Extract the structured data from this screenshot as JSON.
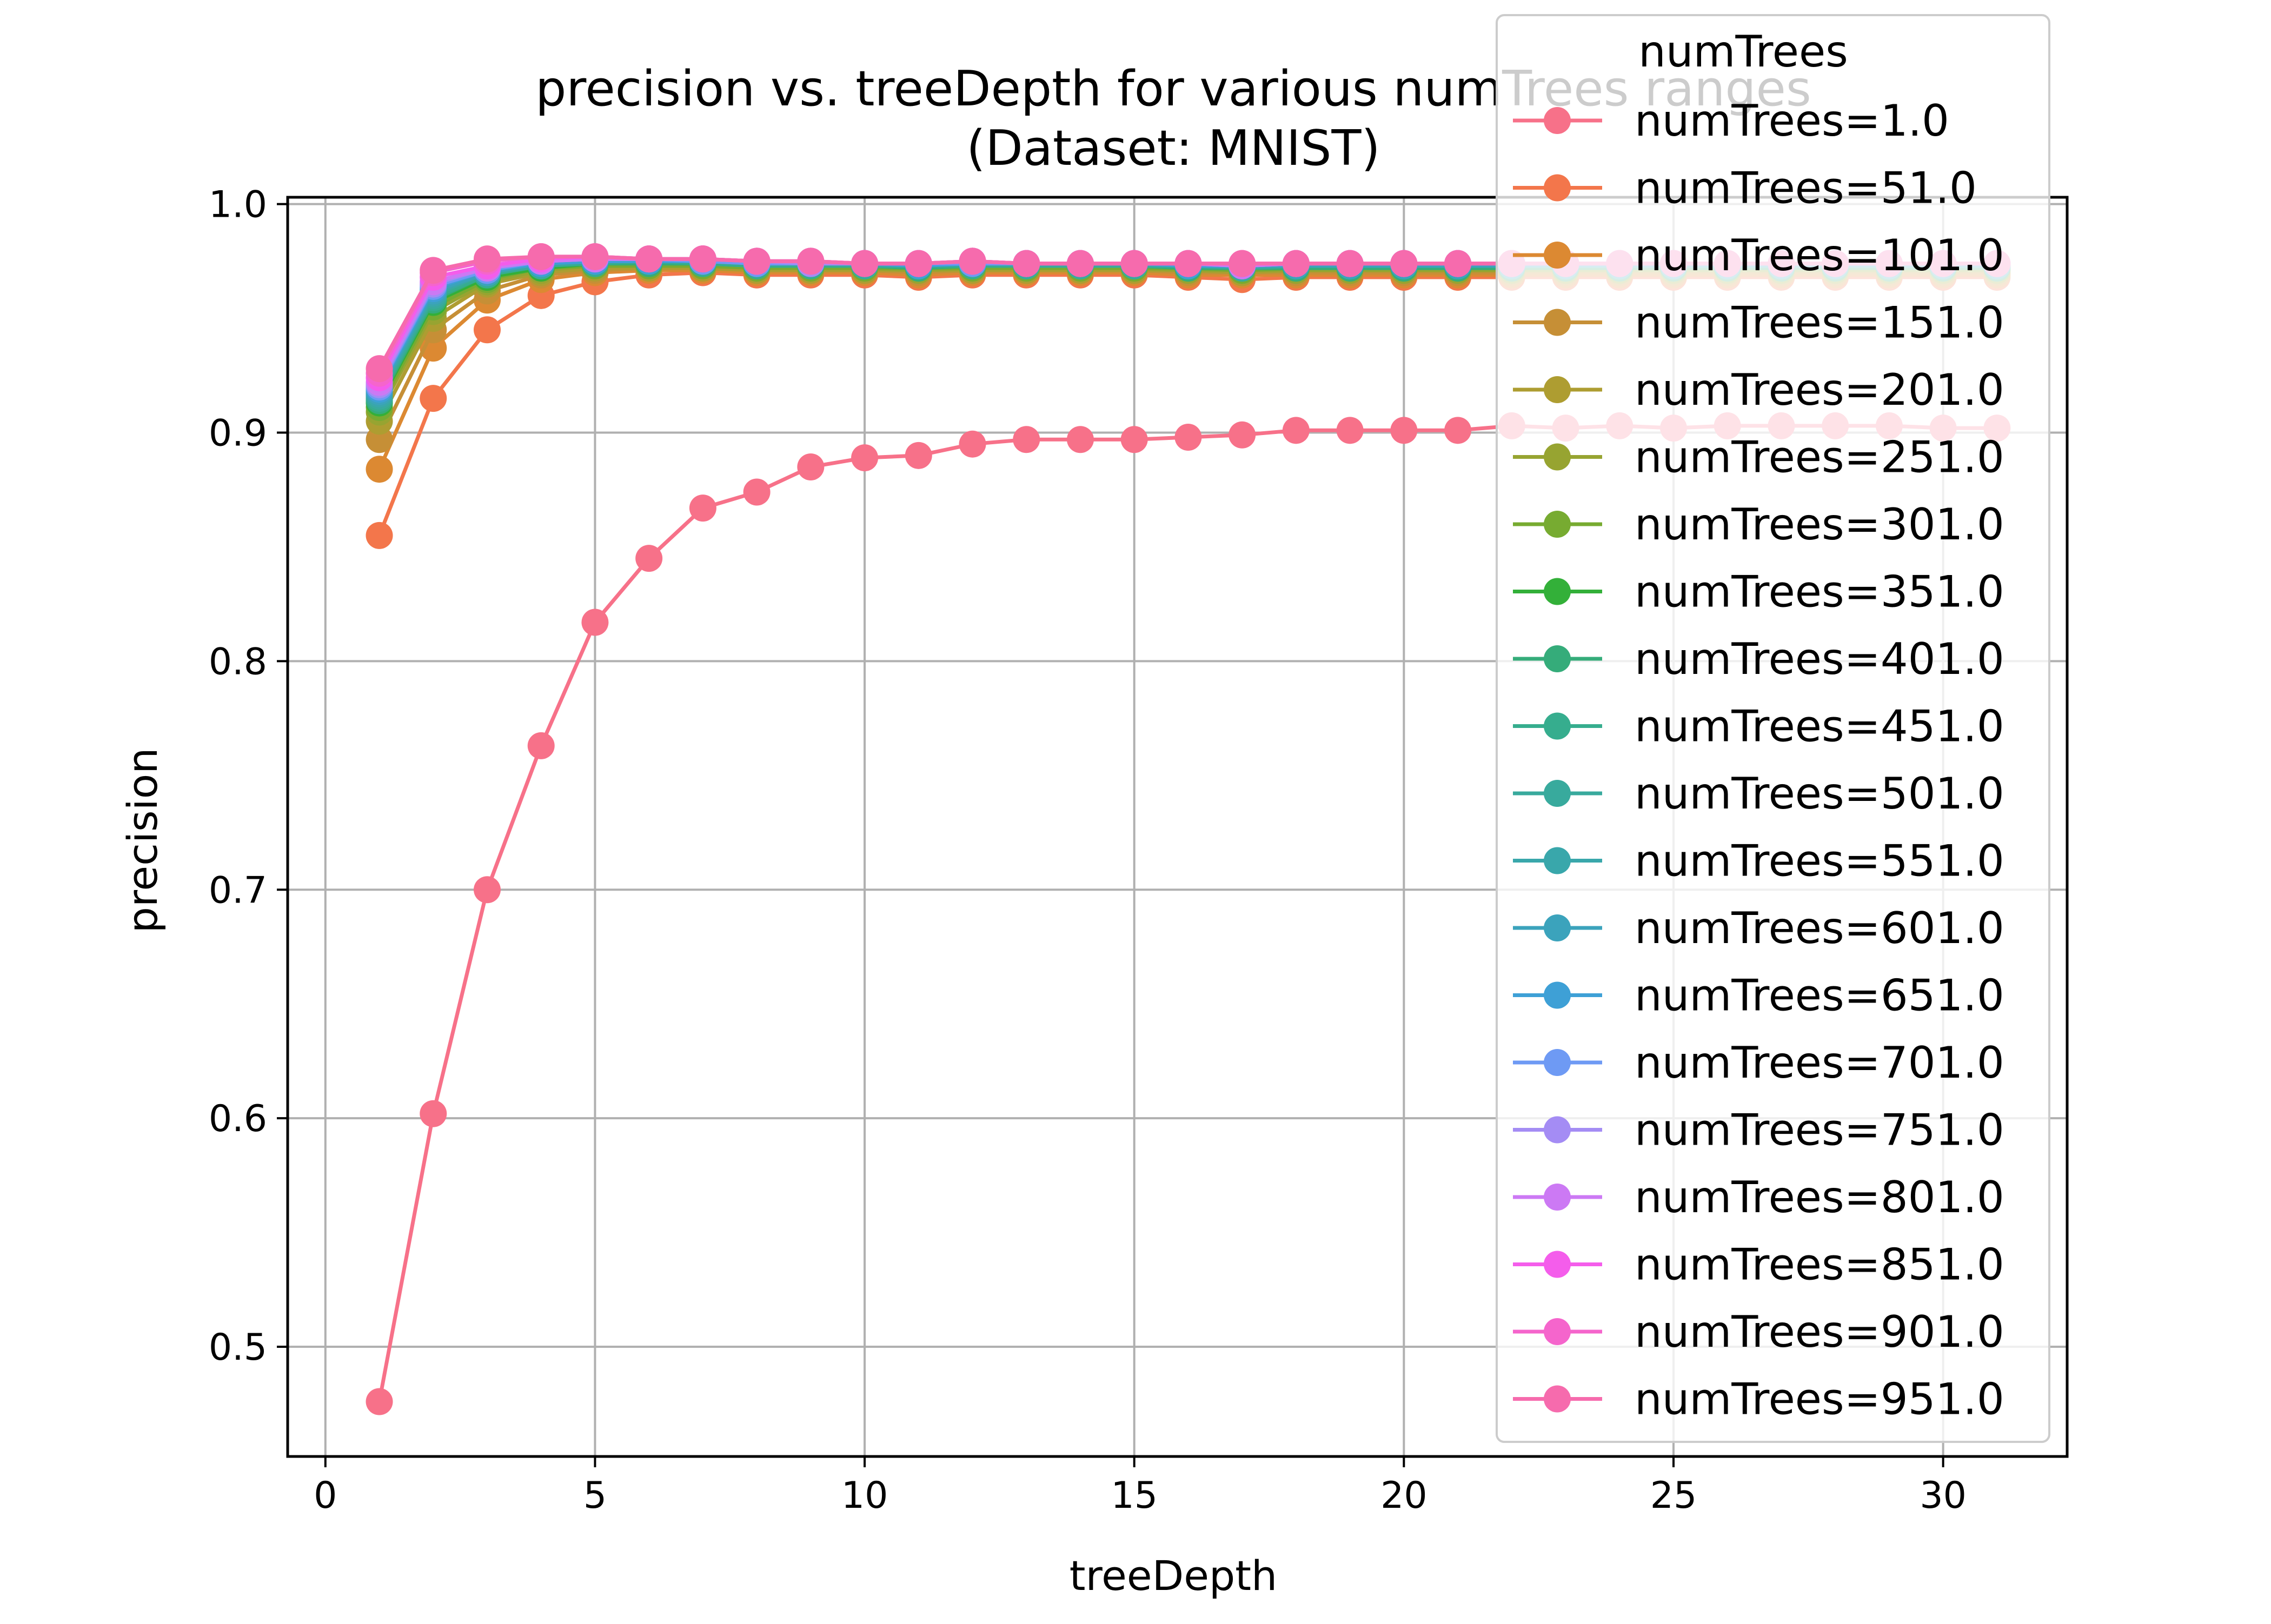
{
  "chart_data": {
    "type": "line",
    "title": "precision vs. treeDepth for various numTrees ranges",
    "subtitle": "(Dataset: MNIST)",
    "xlabel": "treeDepth",
    "ylabel": "precision",
    "xlim": [
      -0.7,
      32.3
    ],
    "ylim": [
      0.452,
      1.003
    ],
    "xticks": [
      0,
      5,
      10,
      15,
      20,
      25,
      30
    ],
    "yticks": [
      0.5,
      0.6,
      0.7,
      0.8,
      0.9,
      1.0
    ],
    "grid": true,
    "legend": {
      "title": "numTrees",
      "placement": "top-right"
    },
    "x": [
      1,
      2,
      3,
      4,
      5,
      6,
      7,
      8,
      9,
      10,
      11,
      12,
      13,
      14,
      15,
      16,
      17,
      18,
      19,
      20,
      21,
      22,
      23,
      24,
      25,
      26,
      27,
      28,
      29,
      30,
      31
    ],
    "series": [
      {
        "name": "numTrees=1.0",
        "color": "#f77189",
        "values": [
          0.476,
          0.602,
          0.7,
          0.763,
          0.817,
          0.845,
          0.867,
          0.874,
          0.885,
          0.889,
          0.89,
          0.895,
          0.897,
          0.897,
          0.897,
          0.898,
          0.899,
          0.901,
          0.901,
          0.901,
          0.901,
          0.903,
          0.902,
          0.903,
          0.902,
          0.903,
          0.903,
          0.903,
          0.903,
          0.902,
          0.902
        ]
      },
      {
        "name": "numTrees=51.0",
        "color": "#f3764b",
        "values": [
          0.855,
          0.915,
          0.945,
          0.96,
          0.966,
          0.969,
          0.97,
          0.969,
          0.969,
          0.969,
          0.968,
          0.969,
          0.969,
          0.969,
          0.969,
          0.968,
          0.967,
          0.968,
          0.968,
          0.968,
          0.968,
          0.968,
          0.968,
          0.968,
          0.968,
          0.968,
          0.968,
          0.968,
          0.968,
          0.968,
          0.968
        ]
      },
      {
        "name": "numTrees=101.0",
        "color": "#dc8932",
        "values": [
          0.884,
          0.937,
          0.958,
          0.967,
          0.97,
          0.971,
          0.971,
          0.97,
          0.97,
          0.97,
          0.969,
          0.97,
          0.97,
          0.97,
          0.97,
          0.969,
          0.969,
          0.969,
          0.969,
          0.969,
          0.969,
          0.969,
          0.969,
          0.969,
          0.969,
          0.969,
          0.969,
          0.969,
          0.969,
          0.969,
          0.969
        ]
      },
      {
        "name": "numTrees=151.0",
        "color": "#c68f36",
        "values": [
          0.897,
          0.945,
          0.962,
          0.969,
          0.971,
          0.972,
          0.972,
          0.971,
          0.971,
          0.971,
          0.97,
          0.971,
          0.971,
          0.971,
          0.971,
          0.97,
          0.97,
          0.97,
          0.97,
          0.97,
          0.97,
          0.97,
          0.97,
          0.97,
          0.97,
          0.97,
          0.97,
          0.97,
          0.97,
          0.97,
          0.97
        ]
      },
      {
        "name": "numTrees=201.0",
        "color": "#ae9d31",
        "values": [
          0.905,
          0.95,
          0.965,
          0.97,
          0.972,
          0.972,
          0.972,
          0.971,
          0.971,
          0.971,
          0.971,
          0.971,
          0.971,
          0.971,
          0.971,
          0.971,
          0.97,
          0.971,
          0.971,
          0.971,
          0.971,
          0.971,
          0.971,
          0.971,
          0.971,
          0.971,
          0.971,
          0.971,
          0.971,
          0.971,
          0.971
        ]
      },
      {
        "name": "numTrees=251.0",
        "color": "#97a431",
        "values": [
          0.909,
          0.953,
          0.966,
          0.971,
          0.973,
          0.973,
          0.973,
          0.972,
          0.972,
          0.972,
          0.971,
          0.972,
          0.972,
          0.972,
          0.972,
          0.971,
          0.971,
          0.971,
          0.971,
          0.971,
          0.971,
          0.971,
          0.971,
          0.971,
          0.971,
          0.971,
          0.971,
          0.971,
          0.971,
          0.971,
          0.971
        ]
      },
      {
        "name": "numTrees=301.0",
        "color": "#77ab31",
        "values": [
          0.911,
          0.955,
          0.967,
          0.972,
          0.973,
          0.973,
          0.973,
          0.972,
          0.972,
          0.972,
          0.972,
          0.972,
          0.972,
          0.972,
          0.972,
          0.972,
          0.971,
          0.972,
          0.972,
          0.972,
          0.972,
          0.972,
          0.972,
          0.972,
          0.972,
          0.972,
          0.972,
          0.972,
          0.972,
          0.972,
          0.972
        ]
      },
      {
        "name": "numTrees=351.0",
        "color": "#33b039",
        "values": [
          0.913,
          0.957,
          0.968,
          0.972,
          0.974,
          0.974,
          0.974,
          0.973,
          0.973,
          0.973,
          0.972,
          0.973,
          0.973,
          0.973,
          0.973,
          0.972,
          0.972,
          0.972,
          0.972,
          0.972,
          0.972,
          0.972,
          0.972,
          0.972,
          0.972,
          0.972,
          0.972,
          0.972,
          0.972,
          0.972,
          0.972
        ]
      },
      {
        "name": "numTrees=401.0",
        "color": "#35ac7a",
        "values": [
          0.914,
          0.958,
          0.969,
          0.973,
          0.974,
          0.974,
          0.974,
          0.973,
          0.973,
          0.973,
          0.972,
          0.973,
          0.973,
          0.973,
          0.973,
          0.972,
          0.972,
          0.972,
          0.972,
          0.972,
          0.972,
          0.972,
          0.972,
          0.972,
          0.972,
          0.972,
          0.972,
          0.972,
          0.972,
          0.972,
          0.972
        ]
      },
      {
        "name": "numTrees=451.0",
        "color": "#36ad8e",
        "values": [
          0.915,
          0.959,
          0.969,
          0.973,
          0.974,
          0.975,
          0.974,
          0.973,
          0.973,
          0.973,
          0.973,
          0.973,
          0.973,
          0.973,
          0.973,
          0.973,
          0.972,
          0.973,
          0.973,
          0.973,
          0.973,
          0.973,
          0.973,
          0.973,
          0.973,
          0.973,
          0.973,
          0.973,
          0.973,
          0.973,
          0.973
        ]
      },
      {
        "name": "numTrees=501.0",
        "color": "#38aa9d",
        "values": [
          0.916,
          0.96,
          0.97,
          0.973,
          0.975,
          0.975,
          0.975,
          0.974,
          0.974,
          0.973,
          0.973,
          0.974,
          0.973,
          0.973,
          0.973,
          0.973,
          0.972,
          0.973,
          0.973,
          0.973,
          0.973,
          0.973,
          0.973,
          0.973,
          0.973,
          0.973,
          0.973,
          0.973,
          0.973,
          0.973,
          0.973
        ]
      },
      {
        "name": "numTrees=551.0",
        "color": "#39a7ab",
        "values": [
          0.917,
          0.961,
          0.97,
          0.974,
          0.975,
          0.975,
          0.975,
          0.974,
          0.974,
          0.974,
          0.973,
          0.974,
          0.974,
          0.974,
          0.974,
          0.973,
          0.973,
          0.973,
          0.973,
          0.973,
          0.973,
          0.973,
          0.973,
          0.973,
          0.973,
          0.973,
          0.973,
          0.973,
          0.973,
          0.973,
          0.973
        ]
      },
      {
        "name": "numTrees=601.0",
        "color": "#3ba3bc",
        "values": [
          0.918,
          0.962,
          0.97,
          0.974,
          0.975,
          0.975,
          0.975,
          0.974,
          0.974,
          0.974,
          0.973,
          0.974,
          0.974,
          0.974,
          0.974,
          0.973,
          0.973,
          0.973,
          0.973,
          0.973,
          0.973,
          0.973,
          0.973,
          0.973,
          0.973,
          0.973,
          0.973,
          0.973,
          0.973,
          0.973,
          0.973
        ]
      },
      {
        "name": "numTrees=651.0",
        "color": "#3ea0d6",
        "values": [
          0.919,
          0.963,
          0.971,
          0.974,
          0.975,
          0.975,
          0.975,
          0.974,
          0.974,
          0.974,
          0.973,
          0.974,
          0.974,
          0.974,
          0.974,
          0.973,
          0.973,
          0.974,
          0.974,
          0.974,
          0.974,
          0.974,
          0.974,
          0.974,
          0.974,
          0.974,
          0.974,
          0.974,
          0.974,
          0.974,
          0.974
        ]
      },
      {
        "name": "numTrees=701.0",
        "color": "#6e9af4",
        "values": [
          0.92,
          0.964,
          0.971,
          0.975,
          0.976,
          0.976,
          0.975,
          0.974,
          0.974,
          0.974,
          0.974,
          0.974,
          0.974,
          0.974,
          0.974,
          0.974,
          0.973,
          0.974,
          0.974,
          0.974,
          0.974,
          0.974,
          0.974,
          0.974,
          0.974,
          0.974,
          0.974,
          0.974,
          0.974,
          0.974,
          0.974
        ]
      },
      {
        "name": "numTrees=751.0",
        "color": "#a48cf4",
        "values": [
          0.921,
          0.965,
          0.972,
          0.975,
          0.976,
          0.976,
          0.976,
          0.975,
          0.974,
          0.974,
          0.974,
          0.975,
          0.974,
          0.974,
          0.974,
          0.974,
          0.973,
          0.974,
          0.974,
          0.974,
          0.974,
          0.974,
          0.974,
          0.974,
          0.974,
          0.974,
          0.974,
          0.974,
          0.974,
          0.974,
          0.974
        ]
      },
      {
        "name": "numTrees=801.0",
        "color": "#cc79f4",
        "values": [
          0.922,
          0.966,
          0.972,
          0.975,
          0.976,
          0.976,
          0.976,
          0.975,
          0.975,
          0.974,
          0.974,
          0.975,
          0.974,
          0.974,
          0.974,
          0.974,
          0.973,
          0.974,
          0.974,
          0.974,
          0.974,
          0.974,
          0.974,
          0.974,
          0.974,
          0.974,
          0.974,
          0.974,
          0.974,
          0.974,
          0.974
        ]
      },
      {
        "name": "numTrees=851.0",
        "color": "#f45deb",
        "values": [
          0.924,
          0.968,
          0.973,
          0.976,
          0.977,
          0.976,
          0.976,
          0.975,
          0.975,
          0.974,
          0.974,
          0.975,
          0.974,
          0.974,
          0.974,
          0.974,
          0.974,
          0.974,
          0.974,
          0.974,
          0.974,
          0.974,
          0.974,
          0.974,
          0.974,
          0.974,
          0.974,
          0.974,
          0.974,
          0.974,
          0.974
        ]
      },
      {
        "name": "numTrees=901.0",
        "color": "#f565cc",
        "values": [
          0.926,
          0.97,
          0.975,
          0.977,
          0.977,
          0.976,
          0.976,
          0.975,
          0.975,
          0.974,
          0.974,
          0.975,
          0.974,
          0.974,
          0.974,
          0.974,
          0.974,
          0.974,
          0.974,
          0.974,
          0.974,
          0.974,
          0.974,
          0.974,
          0.974,
          0.974,
          0.974,
          0.974,
          0.974,
          0.974,
          0.974
        ]
      },
      {
        "name": "numTrees=951.0",
        "color": "#f66bad",
        "values": [
          0.928,
          0.971,
          0.976,
          0.977,
          0.977,
          0.976,
          0.976,
          0.975,
          0.975,
          0.974,
          0.974,
          0.975,
          0.974,
          0.974,
          0.974,
          0.974,
          0.974,
          0.974,
          0.974,
          0.974,
          0.974,
          0.974,
          0.974,
          0.974,
          0.974,
          0.974,
          0.974,
          0.974,
          0.974,
          0.974,
          0.974
        ]
      }
    ]
  }
}
